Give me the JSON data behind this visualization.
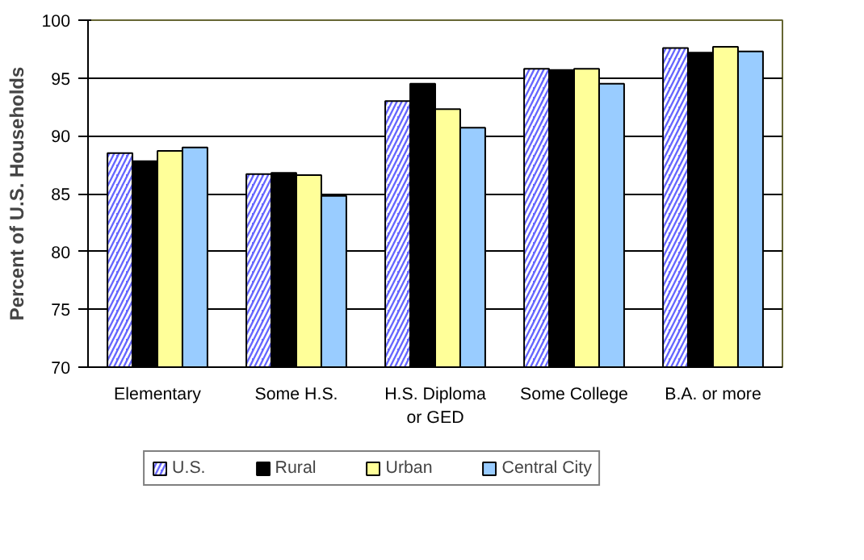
{
  "chart_data": {
    "type": "bar",
    "ylabel": "Percent of U.S. Households",
    "categories": [
      "Elementary",
      "Some H.S.",
      "H.S. Diploma\nor GED",
      "Some College",
      "B.A. or more"
    ],
    "series": [
      {
        "name": "U.S.",
        "color": "#6666ff",
        "values": [
          88.5,
          86.7,
          93.0,
          95.8,
          97.6
        ]
      },
      {
        "name": "Rural",
        "color": "#000000",
        "values": [
          87.8,
          86.8,
          94.5,
          95.7,
          97.2
        ]
      },
      {
        "name": "Urban",
        "color": "#ffff99",
        "values": [
          88.7,
          86.6,
          92.3,
          95.8,
          97.7
        ]
      },
      {
        "name": "Central City",
        "color": "#99ccff",
        "values": [
          89.0,
          84.8,
          90.7,
          94.5,
          97.3
        ]
      }
    ],
    "ylim": [
      70,
      100
    ],
    "yticks": [
      70,
      75,
      80,
      85,
      90,
      95,
      100
    ],
    "grid": "y",
    "legend": "bottom"
  }
}
